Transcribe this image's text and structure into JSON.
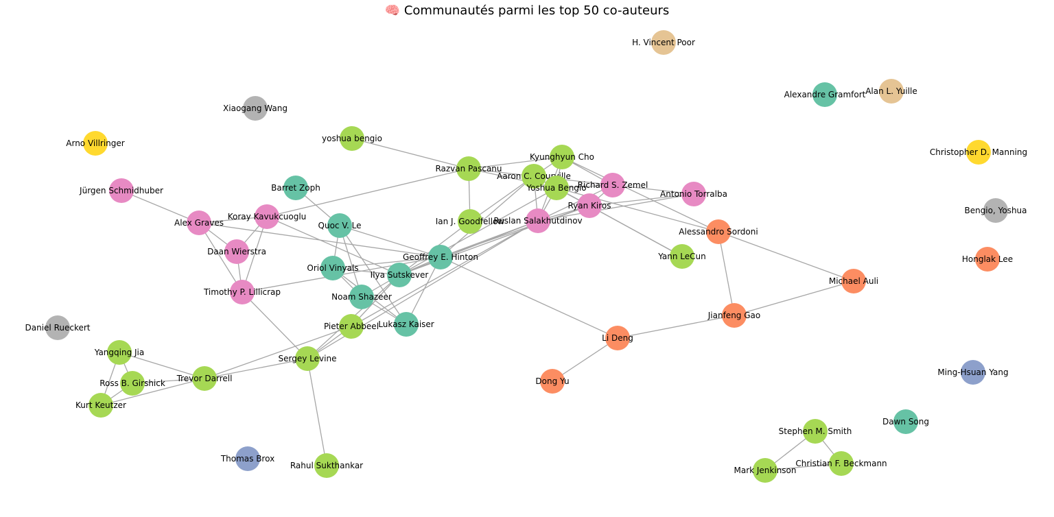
{
  "title": "🧠 Communautés parmi les top 50 co-auteurs",
  "colors": {
    "teal": "#66c2a5",
    "orange": "#fc8d62",
    "blue": "#8da0cb",
    "pink": "#e78ac3",
    "green": "#a6d854",
    "yellow": "#ffd92f",
    "tan": "#e5c494",
    "gray": "#b3b3b3"
  },
  "nodes": [
    {
      "id": "hvp",
      "label": "H. Vincent Poor",
      "color": "tan"
    },
    {
      "id": "ayu",
      "label": "Alan L. Yuille",
      "color": "tan"
    },
    {
      "id": "agr",
      "label": "Alexandre Gramfort",
      "color": "teal"
    },
    {
      "id": "xwa",
      "label": "Xiaogang Wang",
      "color": "gray"
    },
    {
      "id": "avi",
      "label": "Arno Villringer",
      "color": "yellow"
    },
    {
      "id": "cdm",
      "label": "Christopher D. Manning",
      "color": "yellow"
    },
    {
      "id": "yby",
      "label": "Bengio, Yoshua",
      "color": "gray"
    },
    {
      "id": "hle",
      "label": "Honglak Lee",
      "color": "orange"
    },
    {
      "id": "dru",
      "label": "Daniel Rueckert",
      "color": "gray"
    },
    {
      "id": "mhy",
      "label": "Ming-Hsuan Yang",
      "color": "blue"
    },
    {
      "id": "dso",
      "label": "Dawn Song",
      "color": "teal"
    },
    {
      "id": "tbr",
      "label": "Thomas Brox",
      "color": "blue"
    },
    {
      "id": "ybl",
      "label": "yoshua bengio",
      "color": "green"
    },
    {
      "id": "jsc",
      "label": "Jürgen Schmidhuber",
      "color": "pink"
    },
    {
      "id": "bzo",
      "label": "Barret Zoph",
      "color": "teal"
    },
    {
      "id": "rpa",
      "label": "Razvan Pascanu",
      "color": "green"
    },
    {
      "id": "kch",
      "label": "Kyunghyun Cho",
      "color": "green"
    },
    {
      "id": "acc",
      "label": "Aaron C. Courville",
      "color": "green"
    },
    {
      "id": "ybe",
      "label": "Yoshua Bengio",
      "color": "green"
    },
    {
      "id": "rsz",
      "label": "Richard S. Zemel",
      "color": "pink"
    },
    {
      "id": "ato",
      "label": "Antonio Torralba",
      "color": "pink"
    },
    {
      "id": "rki",
      "label": "Ryan Kiros",
      "color": "pink"
    },
    {
      "id": "rsa",
      "label": "Ruslan Salakhutdinov",
      "color": "pink"
    },
    {
      "id": "igo",
      "label": "Ian J. Goodfellow",
      "color": "green"
    },
    {
      "id": "aso",
      "label": "Alessandro Sordoni",
      "color": "orange"
    },
    {
      "id": "agv",
      "label": "Alex Graves",
      "color": "pink"
    },
    {
      "id": "kka",
      "label": "Koray Kavukcuoglu",
      "color": "pink"
    },
    {
      "id": "qle",
      "label": "Quoc V. Le",
      "color": "teal"
    },
    {
      "id": "dwi",
      "label": "Daan Wierstra",
      "color": "pink"
    },
    {
      "id": "geh",
      "label": "Geoffrey E. Hinton",
      "color": "teal"
    },
    {
      "id": "yle",
      "label": "Yann LeCun",
      "color": "green"
    },
    {
      "id": "ovi",
      "label": "Oriol Vinyals",
      "color": "teal"
    },
    {
      "id": "isu",
      "label": "Ilya Sutskever",
      "color": "teal"
    },
    {
      "id": "mau",
      "label": "Michael Auli",
      "color": "orange"
    },
    {
      "id": "tli",
      "label": "Timothy P. Lillicrap",
      "color": "pink"
    },
    {
      "id": "nsh",
      "label": "Noam Shazeer",
      "color": "teal"
    },
    {
      "id": "jga",
      "label": "Jianfeng Gao",
      "color": "orange"
    },
    {
      "id": "pab",
      "label": "Pieter Abbeel",
      "color": "green"
    },
    {
      "id": "lka",
      "label": "Lukasz Kaiser",
      "color": "teal"
    },
    {
      "id": "lde",
      "label": "Li Deng",
      "color": "orange"
    },
    {
      "id": "yji",
      "label": "Yangqing Jia",
      "color": "green"
    },
    {
      "id": "sle",
      "label": "Sergey Levine",
      "color": "green"
    },
    {
      "id": "tda",
      "label": "Trevor Darrell",
      "color": "green"
    },
    {
      "id": "rgi",
      "label": "Ross B. Girshick",
      "color": "green"
    },
    {
      "id": "dyu",
      "label": "Dong Yu",
      "color": "orange"
    },
    {
      "id": "kke",
      "label": "Kurt Keutzer",
      "color": "green"
    },
    {
      "id": "ssm",
      "label": "Stephen M. Smith",
      "color": "green"
    },
    {
      "id": "cbe",
      "label": "Christian F. Beckmann",
      "color": "green"
    },
    {
      "id": "mje",
      "label": "Mark Jenkinson",
      "color": "green"
    },
    {
      "id": "rsu",
      "label": "Rahul Sukthankar",
      "color": "green"
    }
  ],
  "edges": [
    [
      "jsc",
      "agv"
    ],
    [
      "agv",
      "dwi"
    ],
    [
      "agv",
      "tli"
    ],
    [
      "agv",
      "kka"
    ],
    [
      "agv",
      "geh"
    ],
    [
      "kka",
      "dwi"
    ],
    [
      "kka",
      "tli"
    ],
    [
      "kka",
      "rpa"
    ],
    [
      "kka",
      "isu"
    ],
    [
      "dwi",
      "tli"
    ],
    [
      "tli",
      "sle"
    ],
    [
      "tli",
      "geh"
    ],
    [
      "bzo",
      "qle"
    ],
    [
      "qle",
      "ovi"
    ],
    [
      "qle",
      "geh"
    ],
    [
      "qle",
      "nsh"
    ],
    [
      "qle",
      "lka"
    ],
    [
      "ovi",
      "geh"
    ],
    [
      "ovi",
      "nsh"
    ],
    [
      "ovi",
      "lka"
    ],
    [
      "ovi",
      "isu"
    ],
    [
      "isu",
      "geh"
    ],
    [
      "isu",
      "nsh"
    ],
    [
      "isu",
      "rsa"
    ],
    [
      "isu",
      "rki"
    ],
    [
      "isu",
      "ybe"
    ],
    [
      "isu",
      "pab"
    ],
    [
      "isu",
      "sle"
    ],
    [
      "isu",
      "igo"
    ],
    [
      "nsh",
      "lka"
    ],
    [
      "geh",
      "lka"
    ],
    [
      "geh",
      "rsa"
    ],
    [
      "geh",
      "rki"
    ],
    [
      "geh",
      "lde"
    ],
    [
      "geh",
      "acc"
    ],
    [
      "ybl",
      "rpa"
    ],
    [
      "rpa",
      "kch"
    ],
    [
      "rpa",
      "igo"
    ],
    [
      "rpa",
      "acc"
    ],
    [
      "rpa",
      "ybe"
    ],
    [
      "kch",
      "ybe"
    ],
    [
      "kch",
      "rsz"
    ],
    [
      "kch",
      "rsa"
    ],
    [
      "kch",
      "acc"
    ],
    [
      "kch",
      "aso"
    ],
    [
      "acc",
      "ybe"
    ],
    [
      "acc",
      "rsa"
    ],
    [
      "acc",
      "igo"
    ],
    [
      "acc",
      "rki"
    ],
    [
      "acc",
      "ato"
    ],
    [
      "ybe",
      "rki"
    ],
    [
      "ybe",
      "rsa"
    ],
    [
      "ybe",
      "yle"
    ],
    [
      "ybe",
      "aso"
    ],
    [
      "ybe",
      "rsz"
    ],
    [
      "rsz",
      "rki"
    ],
    [
      "rsz",
      "rsa"
    ],
    [
      "rki",
      "rsa"
    ],
    [
      "rki",
      "ato"
    ],
    [
      "rki",
      "yle"
    ],
    [
      "rsa",
      "ato"
    ],
    [
      "rsa",
      "pab"
    ],
    [
      "rsa",
      "sle"
    ],
    [
      "aso",
      "jga"
    ],
    [
      "aso",
      "mau"
    ],
    [
      "jga",
      "mau"
    ],
    [
      "jga",
      "lde"
    ],
    [
      "lde",
      "dyu"
    ],
    [
      "pab",
      "sle"
    ],
    [
      "pab",
      "tda"
    ],
    [
      "sle",
      "tda"
    ],
    [
      "sle",
      "rsu"
    ],
    [
      "tda",
      "yji"
    ],
    [
      "tda",
      "rgi"
    ],
    [
      "tda",
      "kke"
    ],
    [
      "yji",
      "rgi"
    ],
    [
      "yji",
      "kke"
    ],
    [
      "rgi",
      "kke"
    ],
    [
      "ssm",
      "cbe"
    ],
    [
      "ssm",
      "mje"
    ],
    [
      "cbe",
      "mje"
    ]
  ]
}
